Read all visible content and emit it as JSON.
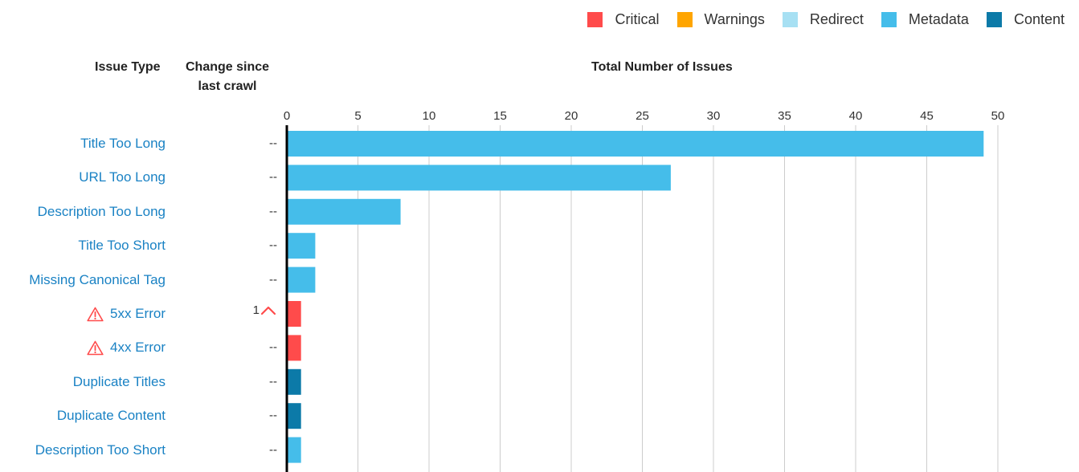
{
  "colors": {
    "critical": "#ff4b4b",
    "warnings": "#ffa500",
    "redirect": "#a7e0f3",
    "metadata": "#45bdea",
    "content": "#0c7aa8",
    "label_link": "#1a82c4",
    "grid": "#cccccc",
    "axis": "#000000"
  },
  "legend": [
    {
      "label": "Critical",
      "color": "#ff4b4b"
    },
    {
      "label": "Warnings",
      "color": "#ffa500"
    },
    {
      "label": "Redirect",
      "color": "#a7e0f3"
    },
    {
      "label": "Metadata",
      "color": "#45bdea"
    },
    {
      "label": "Content",
      "color": "#0c7aa8"
    }
  ],
  "headers": {
    "issue_type": "Issue Type",
    "change_since_last_crawl": "Change since last crawl",
    "total_number_of_issues": "Total Number of Issues"
  },
  "chart_data": {
    "type": "bar",
    "orientation": "horizontal",
    "title": "",
    "xlabel": "Total Number of Issues",
    "ylabel": "Issue Type",
    "xlim": [
      0,
      50
    ],
    "xticks": [
      0,
      5,
      10,
      15,
      20,
      25,
      30,
      35,
      40,
      45,
      50
    ],
    "grid": true,
    "legend_position": "top-right",
    "categories": [
      "Title Too Long",
      "URL Too Long",
      "Description Too Long",
      "Title Too Short",
      "Missing Canonical Tag",
      "5xx Error",
      "4xx Error",
      "Duplicate Titles",
      "Duplicate Content",
      "Description Too Short"
    ],
    "values": [
      49,
      27,
      8,
      2,
      2,
      1,
      1,
      1,
      1,
      1
    ],
    "issue_category": [
      "Metadata",
      "Metadata",
      "Metadata",
      "Metadata",
      "Metadata",
      "Critical",
      "Critical",
      "Content",
      "Content",
      "Metadata"
    ],
    "change_since_last_crawl": [
      "--",
      "--",
      "--",
      "--",
      "--",
      "1",
      "--",
      "--",
      "--",
      "--"
    ],
    "change_direction": [
      "none",
      "none",
      "none",
      "none",
      "none",
      "up",
      "none",
      "none",
      "none",
      "none"
    ],
    "warning_icon": [
      false,
      false,
      false,
      false,
      false,
      true,
      true,
      false,
      false,
      false
    ]
  }
}
